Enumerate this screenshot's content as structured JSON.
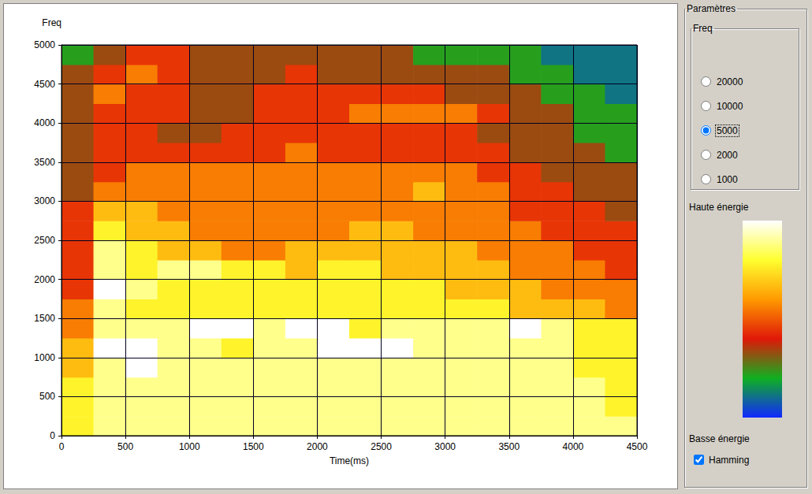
{
  "chart_data": {
    "type": "heatmap",
    "x_label": "Time(ms)",
    "y_label": "Freq",
    "x": [
      0,
      250,
      500,
      750,
      1000,
      1250,
      1500,
      1750,
      2000,
      2250,
      2500,
      2750,
      3000,
      3250,
      3500,
      3750,
      4000,
      4250,
      4500
    ],
    "y": [
      0,
      250,
      500,
      750,
      1000,
      1250,
      1500,
      1750,
      2000,
      2250,
      2500,
      2750,
      3000,
      3250,
      3500,
      3750,
      4000,
      4250,
      4500,
      4750,
      5000
    ],
    "cells": [
      [
        7,
        8,
        8,
        8,
        8,
        8,
        8,
        8,
        8,
        8,
        8,
        8,
        8,
        8,
        8,
        8,
        8,
        8
      ],
      [
        7,
        8,
        8,
        8,
        8,
        8,
        8,
        8,
        8,
        8,
        8,
        8,
        8,
        8,
        8,
        8,
        8,
        7
      ],
      [
        7,
        8,
        8,
        8,
        8,
        8,
        8,
        8,
        8,
        8,
        8,
        8,
        8,
        8,
        8,
        8,
        8,
        7
      ],
      [
        6,
        8,
        9,
        8,
        8,
        8,
        8,
        8,
        8,
        8,
        8,
        8,
        8,
        8,
        8,
        8,
        7,
        7
      ],
      [
        6,
        9,
        9,
        8,
        8,
        7,
        8,
        8,
        9,
        9,
        9,
        8,
        8,
        8,
        8,
        8,
        7,
        7
      ],
      [
        5,
        8,
        8,
        8,
        9,
        9,
        8,
        9,
        9,
        7,
        8,
        8,
        8,
        8,
        9,
        8,
        7,
        7
      ],
      [
        5,
        8,
        7,
        7,
        7,
        7,
        7,
        7,
        7,
        7,
        7,
        7,
        7,
        7,
        6,
        6,
        6,
        5
      ],
      [
        4,
        9,
        8,
        7,
        7,
        7,
        7,
        7,
        7,
        7,
        7,
        7,
        6,
        6,
        6,
        5,
        5,
        5
      ],
      [
        4,
        8,
        7,
        8,
        8,
        7,
        7,
        6,
        7,
        7,
        6,
        6,
        6,
        6,
        5,
        5,
        5,
        4
      ],
      [
        4,
        8,
        7,
        6,
        6,
        5,
        5,
        6,
        6,
        6,
        6,
        6,
        6,
        5,
        5,
        5,
        4,
        4
      ],
      [
        4,
        7,
        6,
        6,
        5,
        5,
        5,
        5,
        5,
        6,
        6,
        5,
        5,
        5,
        5,
        4,
        4,
        4
      ],
      [
        4,
        6,
        6,
        5,
        5,
        5,
        5,
        5,
        5,
        5,
        5,
        5,
        5,
        5,
        4,
        4,
        4,
        3
      ],
      [
        3,
        5,
        5,
        5,
        5,
        5,
        5,
        5,
        5,
        5,
        5,
        6,
        5,
        5,
        4,
        4,
        3,
        3
      ],
      [
        3,
        4,
        5,
        5,
        5,
        5,
        5,
        5,
        5,
        5,
        5,
        5,
        5,
        4,
        4,
        3,
        3,
        3
      ],
      [
        3,
        4,
        4,
        4,
        4,
        4,
        4,
        5,
        4,
        4,
        4,
        4,
        4,
        4,
        3,
        3,
        3,
        2
      ],
      [
        3,
        4,
        4,
        3,
        3,
        4,
        4,
        4,
        4,
        4,
        4,
        4,
        4,
        3,
        3,
        3,
        2,
        2
      ],
      [
        3,
        4,
        4,
        4,
        3,
        3,
        4,
        4,
        4,
        5,
        5,
        5,
        5,
        4,
        3,
        3,
        2,
        2
      ],
      [
        3,
        5,
        4,
        4,
        3,
        3,
        4,
        4,
        4,
        4,
        4,
        4,
        3,
        3,
        3,
        2,
        2,
        1
      ],
      [
        3,
        4,
        5,
        4,
        3,
        3,
        3,
        4,
        3,
        3,
        3,
        3,
        3,
        3,
        2,
        2,
        1,
        1
      ],
      [
        2,
        3,
        4,
        4,
        3,
        3,
        3,
        3,
        3,
        3,
        3,
        2,
        2,
        2,
        2,
        1,
        1,
        1
      ]
    ],
    "colorbar_range": [
      0,
      9
    ],
    "xlim": [
      0,
      4500
    ],
    "xticks": [
      0,
      500,
      1000,
      1500,
      2000,
      2500,
      3000,
      3500,
      4000,
      4500
    ],
    "ylim": [
      0,
      5000
    ],
    "yticks": [
      0,
      500,
      1000,
      1500,
      2000,
      2500,
      3000,
      3500,
      4000,
      4500,
      5000
    ],
    "grid": true
  },
  "panel": {
    "title": "Paramètres",
    "freq_group": {
      "title": "Freq",
      "options": [
        20000,
        10000,
        5000,
        2000,
        1000
      ],
      "selected": 5000
    },
    "colorbar": {
      "high_label": "Haute énergie",
      "low_label": "Basse énergie"
    },
    "checkbox": {
      "label": "Hamming",
      "checked": true
    }
  }
}
